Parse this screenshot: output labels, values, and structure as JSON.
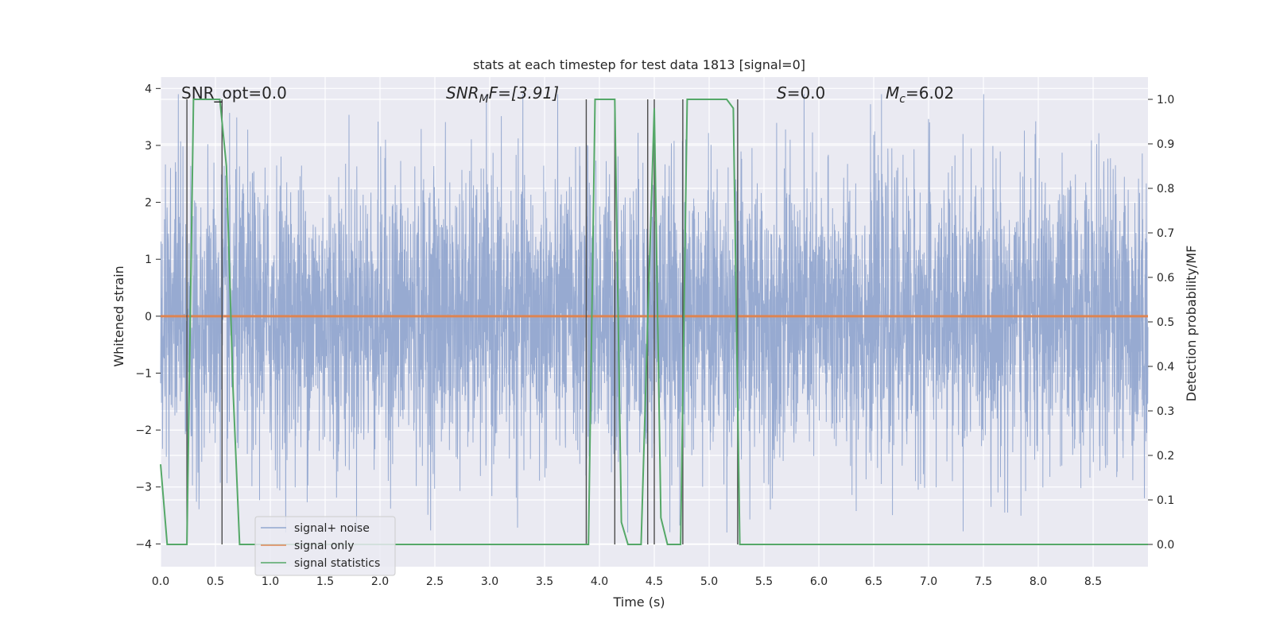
{
  "chart_data": {
    "type": "line",
    "title": "stats at each timestep for test data 1813 [signal=0]",
    "xlabel": "Time (s)",
    "ylabel_left": "Whitened strain",
    "ylabel_right": "Detection probability/MF",
    "xlim": [
      0,
      9
    ],
    "ylim_left": [
      -4.4,
      4.2
    ],
    "ylim_right": [
      -0.05,
      1.05
    ],
    "x_ticks": [
      0.0,
      0.5,
      1.0,
      1.5,
      2.0,
      2.5,
      3.0,
      3.5,
      4.0,
      4.5,
      5.0,
      5.5,
      6.0,
      6.5,
      7.0,
      7.5,
      8.0,
      8.5
    ],
    "x_tick_labels": [
      "0.0",
      "0.5",
      "1.0",
      "1.5",
      "2.0",
      "2.5",
      "3.0",
      "3.5",
      "4.0",
      "4.5",
      "5.0",
      "5.5",
      "6.0",
      "6.5",
      "7.0",
      "7.5",
      "8.0",
      "8.5"
    ],
    "y_left_ticks": [
      4,
      3,
      2,
      1,
      0,
      -1,
      -2,
      -3,
      -4
    ],
    "y_left_tick_labels": [
      "4",
      "3",
      "2",
      "1",
      "0",
      "−1",
      "−2",
      "−3",
      "−4"
    ],
    "y_right_ticks": [
      1.0,
      0.9,
      0.8,
      0.7,
      0.6,
      0.5,
      0.4,
      0.3,
      0.2,
      0.1,
      0.0
    ],
    "y_right_tick_labels": [
      "1.0",
      "0.9",
      "0.8",
      "0.7",
      "0.6",
      "0.5",
      "0.4",
      "0.3",
      "0.2",
      "0.1",
      "0.0"
    ],
    "grid": true,
    "legend_placement": "lower-left",
    "annotations": {
      "snr_opt": "SNR_opt=0.0",
      "snr_mf_main": "SNR",
      "snr_mf_sub": "M",
      "snr_mf_rest": "F=[3.91]",
      "s_main": "S",
      "s_rest": "=0.0",
      "mc_main": "M",
      "mc_sub": "c",
      "mc_rest": "=6.02"
    },
    "series": [
      {
        "name": "signal+ noise",
        "color": "#92a7cf",
        "axis": "left",
        "description_of_values": "dense noise, approx. uniform envelope",
        "sample_rate_hz": 1024,
        "amplitude_envelope": [
          -3.8,
          3.9
        ]
      },
      {
        "name": "signal only",
        "color": "#dd8452",
        "axis": "left",
        "x": [
          0,
          9
        ],
        "y": [
          0,
          0
        ]
      },
      {
        "name": "signal statistics",
        "color": "#55a868",
        "axis": "right",
        "x": [
          0.0,
          0.06,
          0.12,
          0.18,
          0.24,
          0.3,
          0.36,
          0.42,
          0.48,
          0.54,
          0.6,
          0.66,
          0.72,
          3.84,
          3.9,
          3.96,
          4.02,
          4.08,
          4.14,
          4.2,
          4.26,
          4.32,
          4.38,
          4.44,
          4.5,
          4.56,
          4.62,
          4.68,
          4.74,
          4.8,
          4.86,
          5.16,
          5.22,
          5.28,
          5.34,
          5.4,
          9.0
        ],
        "y": [
          0.18,
          0.0,
          0.0,
          0.0,
          0.0,
          1.0,
          1.0,
          1.0,
          1.0,
          1.0,
          0.85,
          0.35,
          0.0,
          0.0,
          0.0,
          1.0,
          1.0,
          1.0,
          1.0,
          0.05,
          0.0,
          0.0,
          0.0,
          0.5,
          0.98,
          0.06,
          0.0,
          0.0,
          0.0,
          1.0,
          1.0,
          1.0,
          0.98,
          0.0,
          0.0,
          0.0,
          0.0
        ]
      }
    ],
    "vertical_markers": [
      0.24,
      0.56,
      3.88,
      4.14,
      4.44,
      4.5,
      4.76,
      5.26
    ]
  },
  "colors": {
    "plot_background": "#eaeaf2",
    "grid": "#ffffff",
    "noise": "#92a7cf",
    "signal": "#dd8452",
    "statistics": "#55a868",
    "markers": "#4c4c4c"
  }
}
